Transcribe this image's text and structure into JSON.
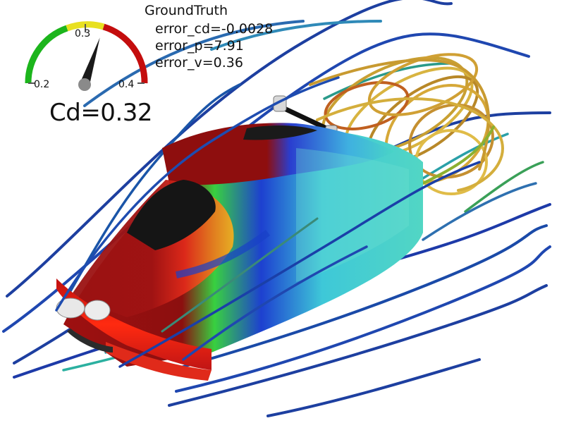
{
  "legend": {
    "title": "GroundTruth",
    "error_cd": "error_cd=-0.0028",
    "error_p": "error_p=7.91",
    "error_v": "error_v=0.36"
  },
  "gauge": {
    "tick_min": "0.2",
    "tick_mid": "0.3",
    "tick_max": "0.4",
    "value": 0.32,
    "readout": "Cd=0.32",
    "colors": {
      "low": "#1cb51c",
      "mid": "#e8e020",
      "high": "#c40d0d",
      "needle": "#1a1a1a",
      "hub": "#8a8a8a"
    }
  },
  "scene": {
    "subject": "car-body-pressure-field",
    "palette": {
      "red": "#9e1010",
      "green": "#43d43a",
      "blue": "#1f3fcf",
      "cyan": "#45d0c8",
      "wake": "#c8a032",
      "stream": "#1d3fa0"
    }
  }
}
